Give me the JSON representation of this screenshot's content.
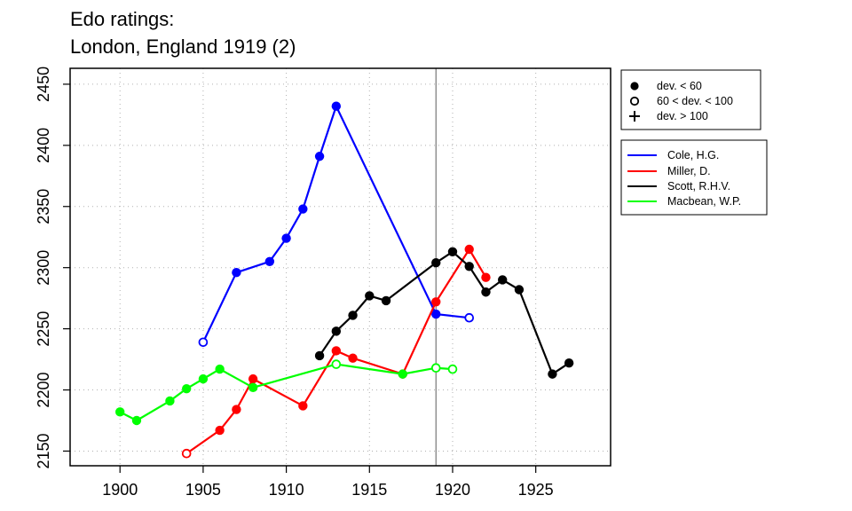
{
  "chart_data": {
    "type": "line",
    "title_lines": [
      "Edo ratings:",
      "London, England 1919 (2)"
    ],
    "xlabel": "",
    "ylabel": "",
    "xlim": [
      1897,
      1929.5
    ],
    "ylim": [
      2138,
      2463
    ],
    "x_ticks": [
      1900,
      1905,
      1910,
      1915,
      1920,
      1925
    ],
    "y_ticks": [
      2150,
      2200,
      2250,
      2300,
      2350,
      2400,
      2450
    ],
    "grid": true,
    "reference_line_x": 1919,
    "deviation_legend": [
      {
        "marker": "filled",
        "label": "dev. < 60"
      },
      {
        "marker": "open",
        "label": "60 < dev. < 100"
      },
      {
        "marker": "plus",
        "label": "dev. > 100"
      }
    ],
    "series": [
      {
        "name": "Cole, H.G.",
        "color": "#0000ff",
        "points": [
          {
            "x": 1905,
            "y": 2239,
            "m": "open"
          },
          {
            "x": 1907,
            "y": 2296,
            "m": "filled"
          },
          {
            "x": 1909,
            "y": 2305,
            "m": "filled"
          },
          {
            "x": 1910,
            "y": 2324,
            "m": "filled"
          },
          {
            "x": 1911,
            "y": 2348,
            "m": "filled"
          },
          {
            "x": 1912,
            "y": 2391,
            "m": "filled"
          },
          {
            "x": 1913,
            "y": 2432,
            "m": "filled"
          },
          {
            "x": 1919,
            "y": 2262,
            "m": "filled"
          },
          {
            "x": 1921,
            "y": 2259,
            "m": "open"
          }
        ]
      },
      {
        "name": "Miller, D.",
        "color": "#ff0000",
        "points": [
          {
            "x": 1904,
            "y": 2148,
            "m": "open"
          },
          {
            "x": 1906,
            "y": 2167,
            "m": "filled"
          },
          {
            "x": 1907,
            "y": 2184,
            "m": "filled"
          },
          {
            "x": 1908,
            "y": 2209,
            "m": "filled"
          },
          {
            "x": 1911,
            "y": 2187,
            "m": "filled"
          },
          {
            "x": 1913,
            "y": 2232,
            "m": "filled"
          },
          {
            "x": 1914,
            "y": 2226,
            "m": "filled"
          },
          {
            "x": 1917,
            "y": 2213,
            "m": "filled"
          },
          {
            "x": 1919,
            "y": 2272,
            "m": "filled"
          },
          {
            "x": 1921,
            "y": 2315,
            "m": "filled"
          },
          {
            "x": 1922,
            "y": 2292,
            "m": "filled"
          }
        ]
      },
      {
        "name": "Scott, R.H.V.",
        "color": "#000000",
        "points": [
          {
            "x": 1912,
            "y": 2228,
            "m": "filled"
          },
          {
            "x": 1913,
            "y": 2248,
            "m": "filled"
          },
          {
            "x": 1914,
            "y": 2261,
            "m": "filled"
          },
          {
            "x": 1915,
            "y": 2277,
            "m": "filled"
          },
          {
            "x": 1916,
            "y": 2273,
            "m": "filled"
          },
          {
            "x": 1919,
            "y": 2304,
            "m": "filled"
          },
          {
            "x": 1920,
            "y": 2313,
            "m": "filled"
          },
          {
            "x": 1921,
            "y": 2301,
            "m": "filled"
          },
          {
            "x": 1922,
            "y": 2280,
            "m": "filled"
          },
          {
            "x": 1923,
            "y": 2290,
            "m": "filled"
          },
          {
            "x": 1924,
            "y": 2282,
            "m": "filled"
          },
          {
            "x": 1926,
            "y": 2213,
            "m": "filled"
          },
          {
            "x": 1927,
            "y": 2222,
            "m": "filled"
          }
        ]
      },
      {
        "name": "Macbean, W.P.",
        "color": "#00ff00",
        "points": [
          {
            "x": 1900,
            "y": 2182,
            "m": "filled"
          },
          {
            "x": 1901,
            "y": 2175,
            "m": "filled"
          },
          {
            "x": 1903,
            "y": 2191,
            "m": "filled"
          },
          {
            "x": 1904,
            "y": 2201,
            "m": "filled"
          },
          {
            "x": 1905,
            "y": 2209,
            "m": "filled"
          },
          {
            "x": 1906,
            "y": 2217,
            "m": "filled"
          },
          {
            "x": 1908,
            "y": 2202,
            "m": "filled"
          },
          {
            "x": 1913,
            "y": 2221,
            "m": "open"
          },
          {
            "x": 1917,
            "y": 2213,
            "m": "filled"
          },
          {
            "x": 1919,
            "y": 2218,
            "m": "open"
          },
          {
            "x": 1920,
            "y": 2217,
            "m": "open"
          }
        ]
      }
    ]
  }
}
